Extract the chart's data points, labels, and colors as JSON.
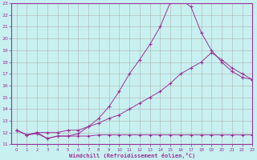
{
  "xlabel": "Windchill (Refroidissement éolien,°C)",
  "ylabel": "",
  "xlim": [
    -0.5,
    23
  ],
  "ylim": [
    11,
    23
  ],
  "xticks": [
    0,
    1,
    2,
    3,
    4,
    5,
    6,
    7,
    8,
    9,
    10,
    11,
    12,
    13,
    14,
    15,
    16,
    17,
    18,
    19,
    20,
    21,
    22,
    23
  ],
  "yticks": [
    11,
    12,
    13,
    14,
    15,
    16,
    17,
    18,
    19,
    20,
    21,
    22,
    23
  ],
  "bg_color": "#c8f0f0",
  "grid_color": "#b0b0b0",
  "line_color": "#993399",
  "line1_x": [
    0,
    1,
    2,
    3,
    4,
    5,
    6,
    7,
    8,
    9,
    10,
    11,
    12,
    13,
    14,
    15,
    16,
    17,
    18,
    19,
    20,
    21,
    22,
    23
  ],
  "line1_y": [
    12.2,
    11.8,
    11.9,
    11.5,
    11.7,
    11.7,
    11.7,
    11.7,
    11.8,
    11.8,
    11.8,
    11.8,
    11.8,
    11.8,
    11.8,
    11.8,
    11.8,
    11.8,
    11.8,
    11.8,
    11.8,
    11.8,
    11.8,
    11.8
  ],
  "line2_x": [
    0,
    1,
    2,
    3,
    4,
    5,
    6,
    7,
    8,
    9,
    10,
    11,
    12,
    13,
    14,
    15,
    16,
    17,
    18,
    19,
    20,
    21,
    22,
    23
  ],
  "line2_y": [
    12.2,
    11.8,
    12.0,
    12.0,
    12.0,
    12.2,
    12.2,
    12.5,
    12.8,
    13.2,
    13.5,
    14.0,
    14.5,
    15.0,
    15.5,
    16.2,
    17.0,
    17.5,
    18.0,
    18.8,
    18.2,
    17.5,
    17.0,
    16.5
  ],
  "line3_x": [
    0,
    1,
    2,
    3,
    4,
    5,
    6,
    7,
    8,
    9,
    10,
    11,
    12,
    13,
    14,
    15,
    16,
    17,
    18,
    19,
    20,
    21,
    22,
    23
  ],
  "line3_y": [
    12.2,
    11.8,
    12.0,
    11.5,
    11.7,
    11.7,
    11.9,
    12.5,
    13.2,
    14.2,
    15.5,
    17.0,
    18.2,
    19.5,
    21.0,
    23.1,
    23.3,
    22.7,
    20.5,
    19.0,
    18.0,
    17.2,
    16.7,
    16.5
  ]
}
